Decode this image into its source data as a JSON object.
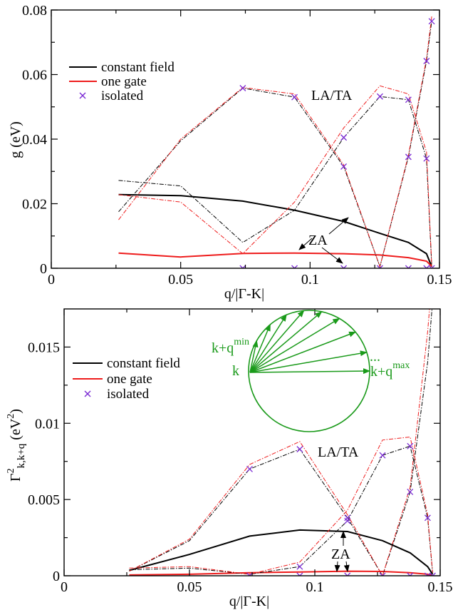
{
  "colors": {
    "constant_field": "#000000",
    "one_gate": "#ee1c1c",
    "isolated": "#7b2bd4",
    "inset": "#1a9a1a"
  },
  "chart_data": [
    {
      "type": "line",
      "xlabel": "q/|Γ-K|",
      "ylabel": "g (eV)",
      "xlim": [
        0,
        0.15
      ],
      "ylim": [
        0,
        0.08
      ],
      "xticks": [
        0,
        0.05,
        0.1,
        0.15
      ],
      "yticks": [
        0,
        0.02,
        0.04,
        0.06,
        0.08
      ],
      "xtick_labels": [
        "0",
        "0.05",
        "0.1",
        "0.15"
      ],
      "ytick_labels": [
        "0",
        "0.02",
        "0.04",
        "0.06",
        "0.08"
      ],
      "legend_placement": "upper-left",
      "legend": [
        "constant field",
        "one gate",
        "isolated"
      ],
      "annotations": [
        "LA/TA",
        "ZA"
      ],
      "series": [
        {
          "name": "constant field",
          "style": "solid-black",
          "x": [
            0.026,
            0.05,
            0.074,
            0.094,
            0.113,
            0.127,
            0.138,
            0.145,
            0.147
          ],
          "y": [
            0.0228,
            0.0225,
            0.0208,
            0.018,
            0.0145,
            0.0108,
            0.008,
            0.0045,
            0.0005
          ]
        },
        {
          "name": "one gate",
          "style": "solid-red",
          "x": [
            0.026,
            0.05,
            0.074,
            0.094,
            0.113,
            0.127,
            0.138,
            0.145,
            0.147
          ],
          "y": [
            0.0047,
            0.0035,
            0.0046,
            0.0047,
            0.0045,
            0.0041,
            0.0033,
            0.0022,
            0.0006
          ]
        },
        {
          "name": "isolated",
          "style": "markers",
          "x": [
            0.074,
            0.094,
            0.113,
            0.127,
            0.138,
            0.145,
            0.147
          ],
          "y": [
            0.0,
            0.0,
            0.0,
            0.0,
            0.0,
            0.0,
            0.0
          ]
        },
        {
          "name": "isolated",
          "style": "markers",
          "x": [
            0.074,
            0.094,
            0.113,
            0.127,
            0.138,
            0.145,
            0.147
          ],
          "y": [
            0.0558,
            0.053,
            0.0405,
            0.0532,
            0.0522,
            0.034,
            0.0765
          ]
        },
        {
          "name": "isolated",
          "style": "markers",
          "x": [
            0.113,
            0.138,
            0.145
          ],
          "y": [
            0.0315,
            0.0345,
            0.0642
          ]
        },
        {
          "name": "",
          "style": "dashdot-black",
          "x": [
            0.026,
            0.05,
            0.074,
            0.094,
            0.113,
            0.127,
            0.138,
            0.145,
            0.147
          ],
          "y": [
            0.0272,
            0.0255,
            0.008,
            0.018,
            0.0405,
            0.0532,
            0.0522,
            0.034,
            0.001
          ]
        },
        {
          "name": "",
          "style": "dashdot-red",
          "x": [
            0.026,
            0.05,
            0.074,
            0.094,
            0.113,
            0.127,
            0.138,
            0.145,
            0.147
          ],
          "y": [
            0.0228,
            0.0205,
            0.0045,
            0.0205,
            0.0435,
            0.0565,
            0.054,
            0.036,
            0.001
          ]
        },
        {
          "name": "",
          "style": "dashdot-black",
          "x": [
            0.026,
            0.05,
            0.074,
            0.094,
            0.113,
            0.127,
            0.138,
            0.145,
            0.147
          ],
          "y": [
            0.0175,
            0.0395,
            0.0558,
            0.053,
            0.0315,
            0.0005,
            0.0345,
            0.0642,
            0.0765
          ]
        },
        {
          "name": "",
          "style": "dashdot-red",
          "x": [
            0.026,
            0.05,
            0.074,
            0.094,
            0.113,
            0.127,
            0.138,
            0.145,
            0.147
          ],
          "y": [
            0.015,
            0.04,
            0.056,
            0.054,
            0.032,
            0.0005,
            0.035,
            0.065,
            0.078
          ]
        }
      ]
    },
    {
      "type": "line",
      "xlabel": "q/|Γ-K|",
      "ylabel": "Γ²k,k+q (eV²)",
      "xlim": [
        0,
        0.15
      ],
      "ylim": [
        0,
        0.0175
      ],
      "xticks": [
        0,
        0.05,
        0.1,
        0.15
      ],
      "yticks": [
        0,
        0.005,
        0.01,
        0.015
      ],
      "xtick_labels": [
        "0",
        "0.05",
        "0.1",
        "0.15"
      ],
      "ytick_labels": [
        "0",
        "0.005",
        "0.01",
        "0.015"
      ],
      "legend_placement": "upper-left",
      "legend": [
        "constant field",
        "one gate",
        "isolated"
      ],
      "annotations": [
        "LA/TA",
        "ZA"
      ],
      "inset_labels": [
        "k+q",
        "min",
        "k",
        "...",
        "k+q",
        "max"
      ],
      "series": [
        {
          "name": "constant field",
          "style": "solid-black",
          "x": [
            0.026,
            0.05,
            0.074,
            0.094,
            0.113,
            0.127,
            0.138,
            0.145,
            0.147
          ],
          "y": [
            0.00035,
            0.0014,
            0.0026,
            0.003,
            0.0029,
            0.0023,
            0.0015,
            0.0006,
            0.0001
          ]
        },
        {
          "name": "one gate",
          "style": "solid-red",
          "x": [
            0.026,
            0.05,
            0.074,
            0.094,
            0.113,
            0.127,
            0.138,
            0.145,
            0.147
          ],
          "y": [
            5e-05,
            0.0001,
            0.0002,
            0.00025,
            0.0003,
            0.00028,
            0.0002,
            0.0001,
            2e-05
          ]
        },
        {
          "name": "isolated",
          "style": "markers",
          "x": [
            0.074,
            0.094,
            0.113,
            0.127,
            0.138,
            0.145,
            0.147
          ],
          "y": [
            0.0,
            0.0,
            0.0,
            0.0,
            0.0,
            0.0,
            0.0
          ]
        },
        {
          "name": "isolated",
          "style": "markers",
          "x": [
            0.074,
            0.094,
            0.113,
            0.127,
            0.138,
            0.145
          ],
          "y": [
            0.007,
            0.0083,
            0.0038,
            0.0079,
            0.0085,
            0.0038
          ]
        },
        {
          "name": "isolated",
          "style": "markers",
          "x": [
            0.094,
            0.113,
            0.138
          ],
          "y": [
            0.0006,
            0.0036,
            0.0055
          ]
        },
        {
          "name": "",
          "style": "dashdot-black",
          "x": [
            0.026,
            0.05,
            0.074,
            0.094,
            0.113,
            0.127,
            0.138,
            0.145,
            0.147
          ],
          "y": [
            0.0003,
            0.0023,
            0.007,
            0.0083,
            0.0038,
            0.0,
            0.0055,
            0.014,
            0.018
          ]
        },
        {
          "name": "",
          "style": "dashdot-red",
          "x": [
            0.026,
            0.05,
            0.074,
            0.094,
            0.113,
            0.127,
            0.138,
            0.145,
            0.147
          ],
          "y": [
            0.0003,
            0.0024,
            0.0073,
            0.0088,
            0.004,
            0.0,
            0.0058,
            0.016,
            0.02
          ]
        },
        {
          "name": "",
          "style": "dashdot-black",
          "x": [
            0.026,
            0.05,
            0.074,
            0.094,
            0.113,
            0.127,
            0.138,
            0.145,
            0.147
          ],
          "y": [
            0.0004,
            0.0005,
            0.0001,
            0.0006,
            0.0036,
            0.0079,
            0.0085,
            0.0038,
            0.0002
          ]
        },
        {
          "name": "",
          "style": "dashdot-red",
          "x": [
            0.026,
            0.05,
            0.074,
            0.094,
            0.113,
            0.127,
            0.138,
            0.145,
            0.147
          ],
          "y": [
            0.0005,
            0.0006,
            0.0001,
            0.0009,
            0.0043,
            0.0089,
            0.0091,
            0.004,
            0.0002
          ]
        }
      ]
    }
  ]
}
